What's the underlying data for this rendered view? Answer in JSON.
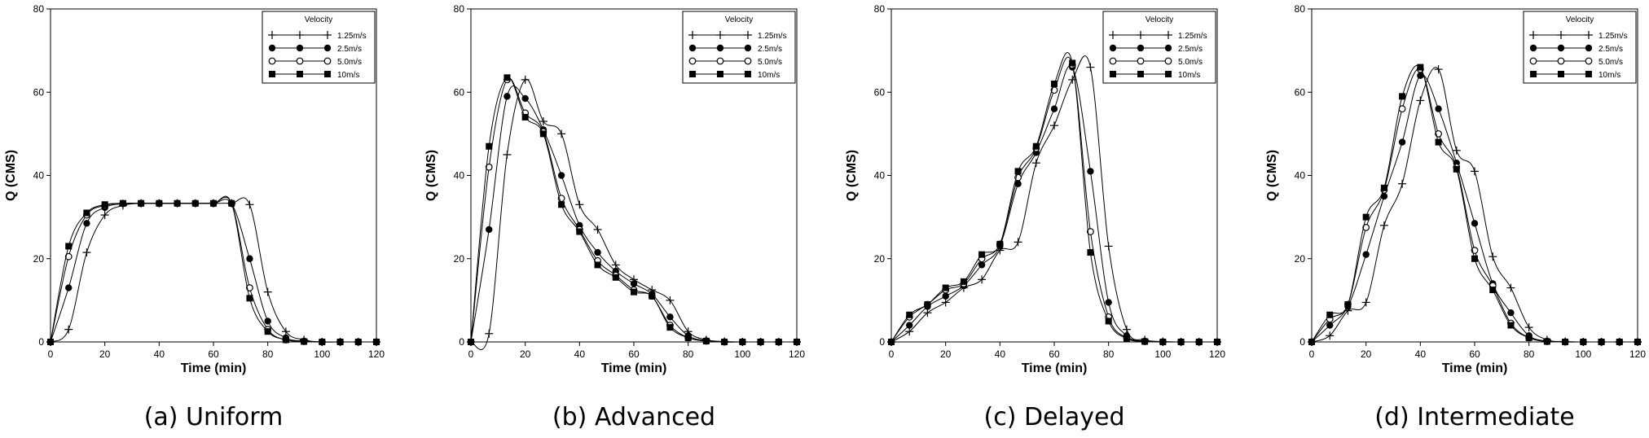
{
  "chart_data": [
    {
      "type": "line",
      "caption": "(a)  Uniform",
      "xlabel": "Time (min)",
      "ylabel": "Q (CMS)",
      "xlim": [
        0,
        120
      ],
      "ylim": [
        0,
        80
      ],
      "xticks": [
        0,
        20,
        40,
        60,
        80,
        100,
        120
      ],
      "yticks": [
        0,
        20,
        40,
        60,
        80
      ],
      "legend": {
        "title": "Velocity",
        "position": "top-right"
      },
      "x": [
        0,
        6.67,
        13.33,
        20,
        26.67,
        33.33,
        40,
        46.67,
        53.33,
        60,
        66.67,
        73.33,
        80,
        86.67,
        93.33,
        100,
        106.67,
        113.33,
        120
      ],
      "series": [
        {
          "name": "1.25m/s",
          "marker": "plus",
          "values": [
            0,
            3,
            21.5,
            30.5,
            32.8,
            33.3,
            33.3,
            33.3,
            33.3,
            33.3,
            33.3,
            33,
            12,
            2.5,
            0.5,
            0,
            0,
            0,
            0
          ]
        },
        {
          "name": "2.5m/s",
          "marker": "filled-circle",
          "values": [
            0,
            13,
            28.5,
            32.3,
            33.2,
            33.3,
            33.3,
            33.3,
            33.3,
            33.3,
            33.3,
            20,
            5,
            1,
            0.2,
            0,
            0,
            0,
            0
          ]
        },
        {
          "name": "5.0m/s",
          "marker": "open-circle",
          "values": [
            0,
            20.5,
            30.5,
            32.8,
            33.3,
            33.3,
            33.3,
            33.3,
            33.3,
            33.3,
            33.3,
            13,
            3,
            0.5,
            0.1,
            0,
            0,
            0,
            0
          ]
        },
        {
          "name": "10m/s",
          "marker": "filled-square",
          "values": [
            0,
            23,
            31,
            33,
            33.3,
            33.3,
            33.3,
            33.3,
            33.3,
            33.3,
            33.3,
            10.5,
            2.5,
            0.5,
            0.1,
            0,
            0,
            0,
            0
          ]
        }
      ]
    },
    {
      "type": "line",
      "caption": "(b)  Advanced",
      "xlabel": "Time (min)",
      "ylabel": "Q (CMS)",
      "xlim": [
        0,
        120
      ],
      "ylim": [
        0,
        80
      ],
      "xticks": [
        0,
        20,
        40,
        60,
        80,
        100,
        120
      ],
      "yticks": [
        0,
        20,
        40,
        60,
        80
      ],
      "legend": {
        "title": "Velocity",
        "position": "top-right"
      },
      "x": [
        0,
        6.67,
        13.33,
        20,
        26.67,
        33.33,
        40,
        46.67,
        53.33,
        60,
        66.67,
        73.33,
        80,
        86.67,
        93.33,
        100,
        106.67,
        113.33,
        120
      ],
      "series": [
        {
          "name": "1.25m/s",
          "marker": "plus",
          "values": [
            0,
            2,
            45,
            63,
            53,
            50,
            33,
            27,
            18.5,
            15,
            12.5,
            10,
            2.5,
            0.5,
            0.1,
            0,
            0,
            0,
            0
          ]
        },
        {
          "name": "2.5m/s",
          "marker": "filled-circle",
          "values": [
            0,
            27,
            59,
            58.5,
            51,
            40,
            28,
            21.5,
            17,
            14,
            11.5,
            6,
            1.5,
            0.3,
            0,
            0,
            0,
            0,
            0
          ]
        },
        {
          "name": "5.0m/s",
          "marker": "open-circle",
          "values": [
            0,
            42,
            63,
            55,
            50.5,
            34.5,
            27,
            19.5,
            16,
            12.5,
            11,
            4,
            1,
            0.2,
            0,
            0,
            0,
            0,
            0
          ]
        },
        {
          "name": "10m/s",
          "marker": "filled-square",
          "values": [
            0,
            47,
            63.5,
            54,
            50,
            33,
            26.5,
            18.5,
            15.5,
            12,
            11,
            3.5,
            1,
            0.2,
            0,
            0,
            0,
            0,
            0
          ]
        }
      ]
    },
    {
      "type": "line",
      "caption": "(c)  Delayed",
      "xlabel": "Time (min)",
      "ylabel": "Q (CMS)",
      "xlim": [
        0,
        120
      ],
      "ylim": [
        0,
        80
      ],
      "xticks": [
        0,
        20,
        40,
        60,
        80,
        100,
        120
      ],
      "yticks": [
        0,
        20,
        40,
        60,
        80
      ],
      "legend": {
        "title": "Velocity",
        "position": "top-right"
      },
      "x": [
        0,
        6.67,
        13.33,
        20,
        26.67,
        33.33,
        40,
        46.67,
        53.33,
        60,
        66.67,
        73.33,
        80,
        86.67,
        93.33,
        100,
        106.67,
        113.33,
        120
      ],
      "series": [
        {
          "name": "1.25m/s",
          "marker": "plus",
          "values": [
            0,
            2.5,
            7,
            9.5,
            13,
            15,
            22,
            24,
            43,
            52,
            63,
            66,
            23,
            3,
            0.5,
            0.1,
            0,
            0,
            0
          ]
        },
        {
          "name": "2.5m/s",
          "marker": "filled-circle",
          "values": [
            0,
            4,
            8.5,
            11,
            13.5,
            18.5,
            23,
            38,
            45.5,
            56,
            66,
            41,
            9.5,
            1.5,
            0.2,
            0,
            0,
            0,
            0
          ]
        },
        {
          "name": "5.0m/s",
          "marker": "open-circle",
          "values": [
            0,
            6,
            9,
            12.5,
            14,
            20,
            23.5,
            39.5,
            46.5,
            60.5,
            66.5,
            26.5,
            6,
            1,
            0.1,
            0,
            0,
            0,
            0
          ]
        },
        {
          "name": "10m/s",
          "marker": "filled-square",
          "values": [
            0,
            6.5,
            9,
            13,
            14.5,
            21,
            23.5,
            41,
            47,
            62,
            67,
            21.5,
            5,
            0.8,
            0.1,
            0,
            0,
            0,
            0
          ]
        }
      ]
    },
    {
      "type": "line",
      "caption": "(d)  Intermediate",
      "xlabel": "Time (min)",
      "ylabel": "Q (CMS)",
      "xlim": [
        0,
        120
      ],
      "ylim": [
        0,
        80
      ],
      "xticks": [
        0,
        20,
        40,
        60,
        80,
        100,
        120
      ],
      "yticks": [
        0,
        20,
        40,
        60,
        80
      ],
      "legend": {
        "title": "Velocity",
        "position": "top-right"
      },
      "x": [
        0,
        6.67,
        13.33,
        20,
        26.67,
        33.33,
        40,
        46.67,
        53.33,
        60,
        66.67,
        73.33,
        80,
        86.67,
        93.33,
        100,
        106.67,
        113.33,
        120
      ],
      "series": [
        {
          "name": "1.25m/s",
          "marker": "plus",
          "values": [
            0,
            1.5,
            7.5,
            9.5,
            28,
            38,
            58,
            65.5,
            46,
            41,
            20.5,
            13,
            3.5,
            0.5,
            0.1,
            0,
            0,
            0,
            0
          ]
        },
        {
          "name": "2.5m/s",
          "marker": "filled-circle",
          "values": [
            0,
            4,
            8.5,
            21,
            35,
            48,
            64,
            56,
            43,
            28.5,
            14,
            7,
            1.5,
            0.2,
            0,
            0,
            0,
            0,
            0
          ]
        },
        {
          "name": "5.0m/s",
          "marker": "open-circle",
          "values": [
            0,
            5.5,
            9,
            27.5,
            36.5,
            56,
            65.5,
            50,
            42,
            22,
            13.5,
            4.5,
            1,
            0.1,
            0,
            0,
            0,
            0,
            0
          ]
        },
        {
          "name": "10m/s",
          "marker": "filled-square",
          "values": [
            0,
            6.5,
            9,
            30,
            37,
            59,
            66,
            48,
            41.5,
            20,
            12.5,
            4,
            1,
            0.1,
            0,
            0,
            0,
            0,
            0
          ]
        }
      ]
    }
  ]
}
